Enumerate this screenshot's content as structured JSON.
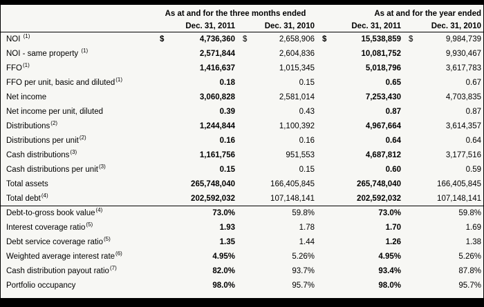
{
  "table": {
    "dollar_sign": "$",
    "groups": [
      "As at and for the three months ended",
      "As at and for the year ended"
    ],
    "col_headers": [
      "Dec. 31, 2011",
      "Dec. 31, 2010",
      "Dec. 31, 2011",
      "Dec. 31, 2010"
    ],
    "rows": [
      {
        "label": "NOI ",
        "sup": "(1)",
        "dollar": true,
        "values": [
          "4,736,360",
          "2,658,906",
          "15,538,859",
          "9,984,739"
        ]
      },
      {
        "label": "NOI - same property ",
        "sup": "(1)",
        "values": [
          "2,571,844",
          "2,604,836",
          "10,081,752",
          "9,930,467"
        ]
      },
      {
        "label": "FFO",
        "sup": "(1)",
        "values": [
          "1,416,637",
          "1,015,345",
          "5,018,796",
          "3,617,783"
        ]
      },
      {
        "label": "FFO per unit, basic and diluted",
        "sup": "(1)",
        "values": [
          "0.18",
          "0.15",
          "0.65",
          "0.67"
        ]
      },
      {
        "label": "Net income",
        "values": [
          "3,060,828",
          "2,581,014",
          "7,253,430",
          "4,703,835"
        ]
      },
      {
        "label": "Net income per unit, diluted",
        "values": [
          "0.39",
          "0.43",
          "0.87",
          "0.87"
        ]
      },
      {
        "label": "Distributions",
        "sup": "(2)",
        "values": [
          "1,244,844",
          "1,100,392",
          "4,967,664",
          "3,614,357"
        ]
      },
      {
        "label": "Distributions per unit",
        "sup": "(2)",
        "values": [
          "0.16",
          "0.16",
          "0.64",
          "0.64"
        ]
      },
      {
        "label": "Cash distributions",
        "sup": "(3)",
        "values": [
          "1,161,756",
          "951,553",
          "4,687,812",
          "3,177,516"
        ]
      },
      {
        "label": "Cash distributions per unit",
        "sup": "(3)",
        "values": [
          "0.15",
          "0.15",
          "0.60",
          "0.59"
        ]
      },
      {
        "label": "Total assets",
        "values": [
          "265,748,040",
          "166,405,845",
          "265,748,040",
          "166,405,845"
        ]
      },
      {
        "label": "Total debt",
        "sup": "(4)",
        "divider_after": true,
        "values": [
          "202,592,032",
          "107,148,141",
          "202,592,032",
          "107,148,141"
        ]
      },
      {
        "label": "Debt-to-gross book value",
        "sup": "(4)",
        "values": [
          "73.0%",
          "59.8%",
          "73.0%",
          "59.8%"
        ]
      },
      {
        "label": "Interest coverage ratio",
        "sup": "(5)",
        "values": [
          "1.93",
          "1.78",
          "1.70",
          "1.69"
        ]
      },
      {
        "label": "Debt service coverage ratio",
        "sup": "(5)",
        "values": [
          "1.35",
          "1.44",
          "1.26",
          "1.38"
        ]
      },
      {
        "label": "Weighted average interest rate",
        "sup": "(6)",
        "values": [
          "4.95%",
          "5.26%",
          "4.95%",
          "5.26%"
        ]
      },
      {
        "label": "Cash distribution payout ratio",
        "sup": "(7)",
        "values": [
          "82.0%",
          "93.7%",
          "93.4%",
          "87.8%"
        ]
      },
      {
        "label": "Portfolio occupancy",
        "values": [
          "98.0%",
          "95.7%",
          "98.0%",
          "95.7%"
        ]
      }
    ]
  }
}
